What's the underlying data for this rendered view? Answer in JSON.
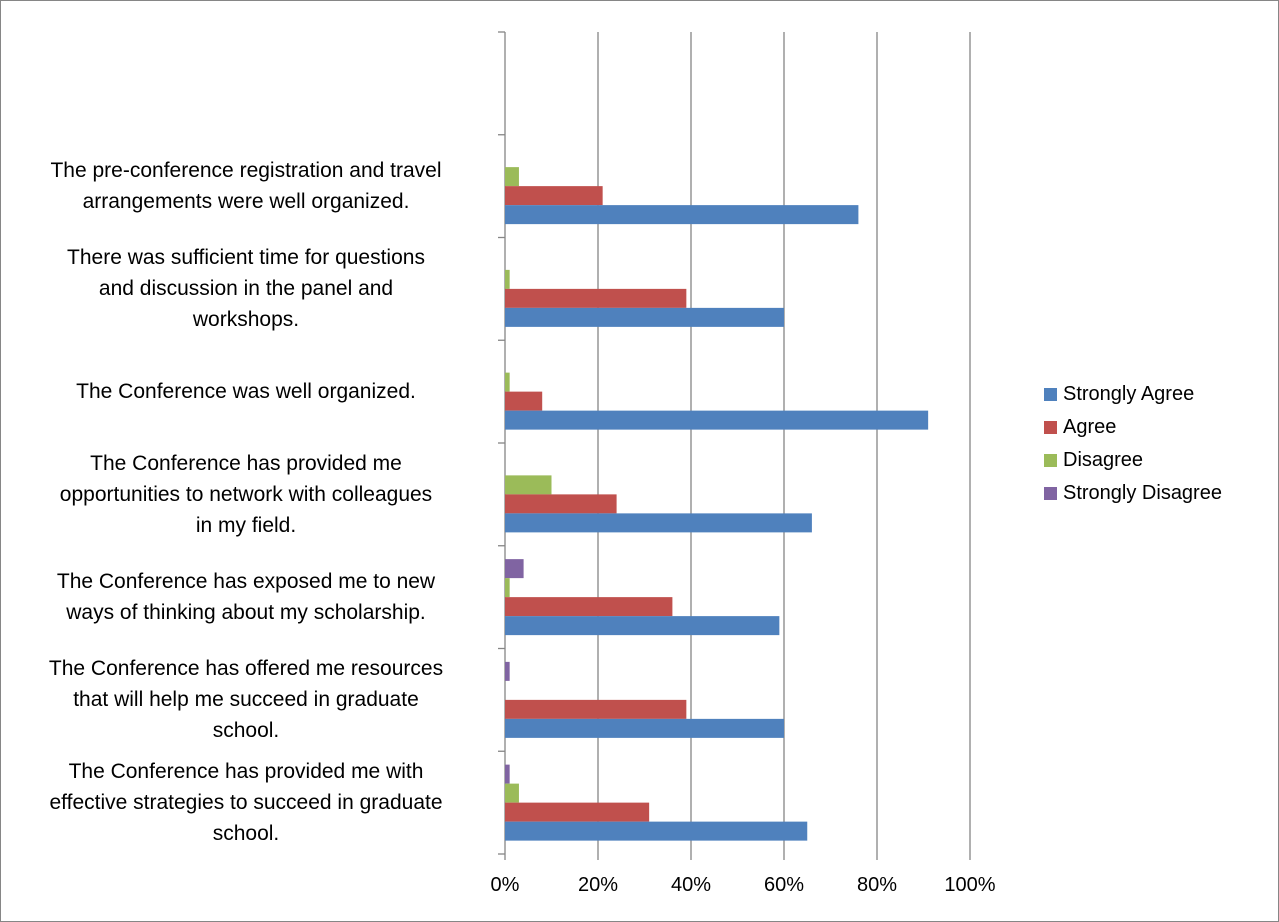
{
  "chart_data": {
    "type": "bar",
    "orientation": "horizontal",
    "title": "",
    "xlabel": "",
    "ylabel": "",
    "xlim": [
      0,
      100
    ],
    "x_ticks": [
      "0%",
      "20%",
      "40%",
      "60%",
      "80%",
      "100%"
    ],
    "grid": true,
    "legend_position": "right",
    "categories": [
      "The pre-conference registration and travel arrangements were well organized.",
      "There was sufficient time for questions and discussion in the panel and workshops.",
      "The Conference was well organized.",
      "The Conference has provided me opportunities to network with colleagues in my field.",
      "The Conference has exposed me to new ways of thinking about my scholarship.",
      "The Conference has offered me resources that will help me succeed in graduate school.",
      "The Conference has provided me with effective strategies to succeed in graduate school."
    ],
    "series": [
      {
        "name": "Strongly Disagree",
        "color": "#8064A2",
        "values": [
          0,
          0,
          0,
          0,
          4,
          1,
          1
        ]
      },
      {
        "name": "Disagree",
        "color": "#9BBB59",
        "values": [
          3,
          1,
          1,
          10,
          1,
          0,
          3
        ]
      },
      {
        "name": "Agree",
        "color": "#C0504D",
        "values": [
          21,
          39,
          8,
          24,
          36,
          39,
          31
        ]
      },
      {
        "name": "Strongly Agree",
        "color": "#4F81BD",
        "values": [
          76,
          60,
          91,
          66,
          59,
          60,
          65
        ]
      }
    ]
  }
}
